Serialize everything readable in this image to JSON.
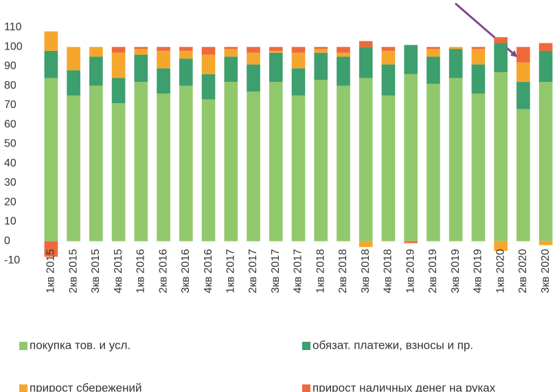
{
  "chart_data": {
    "type": "stacked_bar",
    "categories": [
      "1кв 2015",
      "2кв 2015",
      "3кв 2015",
      "4кв 2015",
      "1кв 2016",
      "2кв 2016",
      "3кв 2016",
      "4кв 2016",
      "1кв 2017",
      "2кв 2017",
      "3кв 2017",
      "4кв 2017",
      "1кв 2018",
      "2кв 2018",
      "3кв 2018",
      "4кв 2018",
      "1кв 2019",
      "2кв 2019",
      "3кв 2019",
      "4кв 2019",
      "1кв 2020",
      "2кв 2020",
      "3кв 2020"
    ],
    "series": [
      {
        "name": "покупка тов. и усл.",
        "color": "#92c86c",
        "values": [
          84,
          75,
          80,
          71,
          82,
          76,
          80,
          73,
          82,
          77,
          82,
          75,
          83,
          80,
          84,
          75,
          86,
          81,
          84,
          76,
          87,
          68,
          82
        ]
      },
      {
        "name": "обязат. платежи, взносы и пр.",
        "color": "#3d9e6e",
        "values": [
          14,
          13,
          15,
          13,
          14,
          13,
          14,
          13,
          13,
          14,
          15,
          14,
          14,
          15,
          16,
          16,
          15,
          14,
          15,
          15,
          15,
          14,
          16
        ]
      },
      {
        "name": "прирост сбережений",
        "color": "#f5a72d",
        "values": [
          10,
          12,
          5,
          13,
          3,
          9,
          4,
          10,
          4,
          6,
          1,
          8,
          2,
          2,
          -3,
          7,
          0,
          4,
          1,
          8,
          -5,
          10,
          -2
        ]
      },
      {
        "name": "прирост наличных денег  на руках",
        "color": "#ee6a3c",
        "values": [
          -8,
          0,
          0,
          3,
          1,
          2,
          2,
          4,
          1,
          3,
          2,
          3,
          1,
          3,
          3,
          2,
          -1,
          1,
          0,
          1,
          3,
          8,
          4
        ]
      }
    ],
    "ylim": [
      -10,
      110
    ],
    "yticks": [
      -10,
      0,
      10,
      20,
      30,
      40,
      50,
      60,
      70,
      80,
      90,
      100,
      110
    ],
    "grid": false
  }
}
